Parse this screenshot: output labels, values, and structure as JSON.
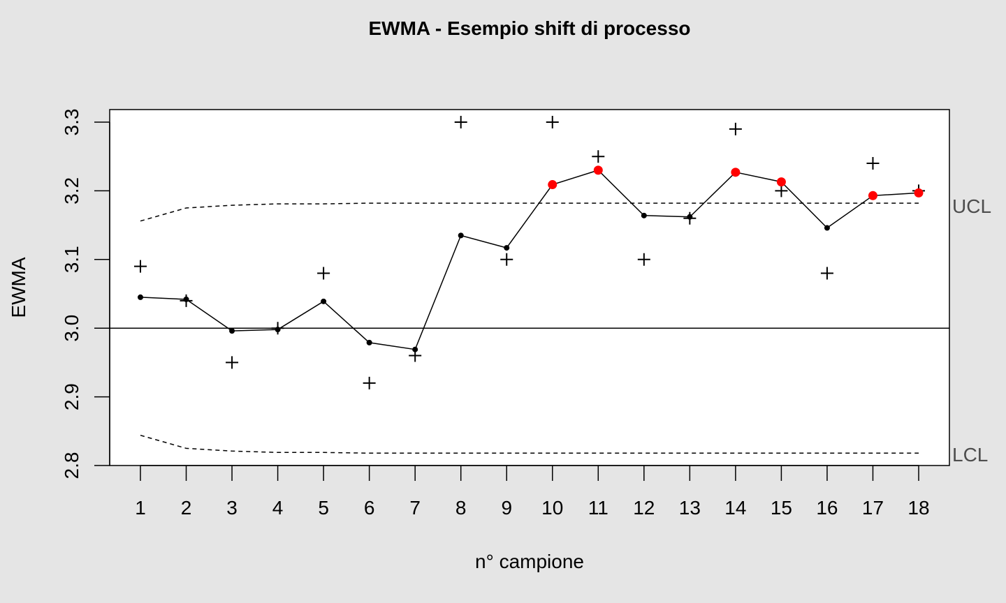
{
  "chart_data": {
    "type": "line",
    "title": "EWMA - Esempio shift di processo",
    "xlabel": "n° campione",
    "ylabel": "EWMA",
    "x": [
      1,
      2,
      3,
      4,
      5,
      6,
      7,
      8,
      9,
      10,
      11,
      12,
      13,
      14,
      15,
      16,
      17,
      18
    ],
    "xticks": [
      "1",
      "2",
      "3",
      "4",
      "5",
      "6",
      "7",
      "8",
      "9",
      "10",
      "11",
      "12",
      "13",
      "14",
      "15",
      "16",
      "17",
      "18"
    ],
    "yticks": [
      "2.8",
      "2.9",
      "3.0",
      "3.1",
      "3.2",
      "3.3"
    ],
    "ylim": [
      2.8,
      3.3
    ],
    "xlim": [
      1,
      18
    ],
    "center_line": 3.0,
    "series": [
      {
        "style": "plus-markers",
        "values": [
          3.09,
          3.04,
          2.95,
          3.0,
          3.08,
          2.92,
          2.96,
          3.3,
          3.1,
          3.3,
          3.25,
          3.1,
          3.16,
          3.29,
          3.2,
          3.08,
          3.24,
          3.2
        ]
      },
      {
        "style": "line-with-dots",
        "values": [
          3.045,
          3.042,
          2.996,
          2.998,
          3.039,
          2.979,
          2.969,
          3.135,
          3.117,
          3.209,
          3.23,
          3.164,
          3.162,
          3.227,
          3.213,
          3.146,
          3.193,
          3.197
        ]
      }
    ],
    "ucl": [
      3.156,
      3.175,
      3.179,
      3.181,
      3.181,
      3.182,
      3.182,
      3.182,
      3.182,
      3.182,
      3.182,
      3.182,
      3.182,
      3.182,
      3.182,
      3.182,
      3.182,
      3.182
    ],
    "lcl": [
      2.844,
      2.825,
      2.821,
      2.819,
      2.819,
      2.818,
      2.818,
      2.818,
      2.818,
      2.818,
      2.818,
      2.818,
      2.818,
      2.818,
      2.818,
      2.818,
      2.818,
      2.818
    ],
    "ucl_label": "UCL",
    "lcl_label": "LCL",
    "colors": {
      "background": "#e5e5e5",
      "plot_background": "#ffffff",
      "in_control": "#000000",
      "out_of_control": "#ff0000"
    }
  }
}
